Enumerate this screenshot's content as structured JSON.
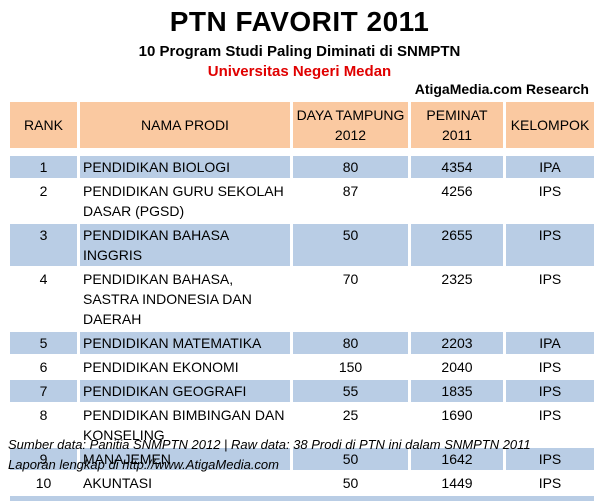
{
  "header": {
    "title": "PTN FAVORIT 2011",
    "subtitle": "10 Program Studi Paling Diminati di SNMPTN",
    "university": "Universitas Negeri Medan",
    "research": "AtigaMedia.com Research"
  },
  "table": {
    "columns": [
      "RANK",
      "NAMA PRODI",
      "DAYA TAMPUNG 2012",
      "PEMINAT 2011",
      "KELOMPOK"
    ],
    "rows": [
      {
        "rank": "1",
        "prodi": "PENDIDIKAN BIOLOGI",
        "daya": "80",
        "peminat": "4354",
        "kelompok": "IPA"
      },
      {
        "rank": "2",
        "prodi": "PENDIDIKAN GURU SEKOLAH DASAR (PGSD)",
        "daya": "87",
        "peminat": "4256",
        "kelompok": "IPS"
      },
      {
        "rank": "3",
        "prodi": "PENDIDIKAN BAHASA INGGRIS",
        "daya": "50",
        "peminat": "2655",
        "kelompok": "IPS"
      },
      {
        "rank": "4",
        "prodi": "PENDIDIKAN BAHASA, SASTRA INDONESIA DAN DAERAH",
        "daya": "70",
        "peminat": "2325",
        "kelompok": "IPS"
      },
      {
        "rank": "5",
        "prodi": "PENDIDIKAN MATEMATIKA",
        "daya": "80",
        "peminat": "2203",
        "kelompok": "IPA"
      },
      {
        "rank": "6",
        "prodi": "PENDIDIKAN EKONOMI",
        "daya": "150",
        "peminat": "2040",
        "kelompok": "IPS"
      },
      {
        "rank": "7",
        "prodi": "PENDIDIKAN GEOGRAFI",
        "daya": "55",
        "peminat": "1835",
        "kelompok": "IPS"
      },
      {
        "rank": "8",
        "prodi": "PENDIDIKAN BIMBINGAN DAN KONSELING",
        "daya": "25",
        "peminat": "1690",
        "kelompok": "IPS"
      },
      {
        "rank": "9",
        "prodi": "MANAJEMEN",
        "daya": "50",
        "peminat": "1642",
        "kelompok": "IPS"
      },
      {
        "rank": "10",
        "prodi": "AKUNTASI",
        "daya": "50",
        "peminat": "1449",
        "kelompok": "IPS"
      }
    ]
  },
  "footer": {
    "line1": "Sumber data: Panitia SNMPTN 2012 | Raw data: 38 Prodi di PTN ini dalam SNMPTN 2011",
    "line2": "Laporan lengkap di http://www.AtigaMedia.com"
  },
  "colors": {
    "header_fill": "#fac9a1",
    "row_shade": "#b9cde5",
    "university_text": "#e00000"
  }
}
